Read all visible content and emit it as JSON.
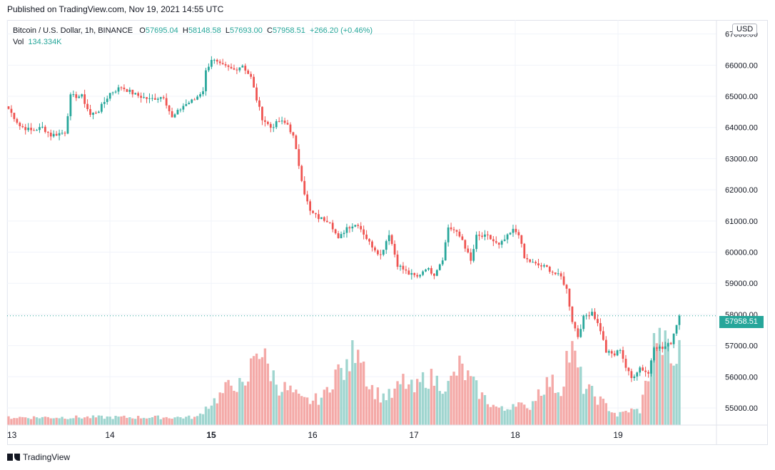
{
  "published": "Published on TradingView.com, Nov 19, 2021 14:55 UTC",
  "legend": {
    "symbol": "Bitcoin / U.S. Dollar, 1h, BINANCE",
    "o_label": "O",
    "o_value": "57695.04",
    "h_label": "H",
    "h_value": "58148.58",
    "l_label": "L",
    "l_value": "57693.00",
    "c_label": "C",
    "c_value": "57958.51",
    "change": "+266.20 (+0.46%)",
    "vol_label": "Vol",
    "vol_value": "134.334K"
  },
  "currency_badge": "USD",
  "last_price_label": "57958.51",
  "brand": "TradingView",
  "colors": {
    "up": "#26a69a",
    "down": "#ef5350",
    "vol_up": "#9fd5cf",
    "vol_down": "#f4a9a7",
    "grid": "#f0f3fa",
    "last_price_line": "#26a69a"
  },
  "chart_data": {
    "type": "candlestick",
    "title": "Bitcoin / U.S. Dollar, 1h, BINANCE",
    "interval": "1h",
    "y_axis": {
      "position": "right",
      "range": [
        54450,
        67450
      ],
      "ticks": [
        "67000.00",
        "66000.00",
        "65000.00",
        "64000.00",
        "63000.00",
        "62000.00",
        "61000.00",
        "60000.00",
        "59000.00",
        "58000.00",
        "57000.00",
        "56000.00",
        "55000.00"
      ]
    },
    "x_axis": {
      "ticks": [
        {
          "label": "13",
          "bold": false
        },
        {
          "label": "14",
          "bold": false
        },
        {
          "label": "15",
          "bold": true
        },
        {
          "label": "16",
          "bold": false
        },
        {
          "label": "17",
          "bold": false
        },
        {
          "label": "18",
          "bold": false
        },
        {
          "label": "19",
          "bold": false
        }
      ]
    },
    "grid": true,
    "last_price": 57958.51,
    "price_keypoints": [
      [
        0,
        64600
      ],
      [
        4,
        64050
      ],
      [
        8,
        63900
      ],
      [
        12,
        64000
      ],
      [
        15,
        63750
      ],
      [
        20,
        63850
      ],
      [
        22,
        65000
      ],
      [
        26,
        65000
      ],
      [
        29,
        64400
      ],
      [
        32,
        64550
      ],
      [
        36,
        65100
      ],
      [
        40,
        65300
      ],
      [
        45,
        65050
      ],
      [
        50,
        64900
      ],
      [
        55,
        65000
      ],
      [
        58,
        64300
      ],
      [
        62,
        64700
      ],
      [
        66,
        64900
      ],
      [
        69,
        65200
      ],
      [
        70,
        65800
      ],
      [
        72,
        66200
      ],
      [
        75,
        66000
      ],
      [
        80,
        65850
      ],
      [
        83,
        66000
      ],
      [
        86,
        65600
      ],
      [
        88,
        64900
      ],
      [
        90,
        64300
      ],
      [
        93,
        64000
      ],
      [
        96,
        64200
      ],
      [
        99,
        64100
      ],
      [
        101,
        63700
      ],
      [
        103,
        62800
      ],
      [
        105,
        61900
      ],
      [
        107,
        61300
      ],
      [
        110,
        61100
      ],
      [
        114,
        61000
      ],
      [
        117,
        60400
      ],
      [
        120,
        60800
      ],
      [
        124,
        60900
      ],
      [
        128,
        60300
      ],
      [
        132,
        59900
      ],
      [
        135,
        60600
      ],
      [
        138,
        59600
      ],
      [
        142,
        59300
      ],
      [
        145,
        59200
      ],
      [
        148,
        59500
      ],
      [
        151,
        59300
      ],
      [
        154,
        59800
      ],
      [
        156,
        60800
      ],
      [
        158,
        60700
      ],
      [
        161,
        60400
      ],
      [
        164,
        59700
      ],
      [
        166,
        60500
      ],
      [
        170,
        60500
      ],
      [
        174,
        60200
      ],
      [
        176,
        60400
      ],
      [
        179,
        60700
      ],
      [
        181,
        60600
      ],
      [
        183,
        59800
      ],
      [
        187,
        59600
      ],
      [
        191,
        59500
      ],
      [
        194,
        59300
      ],
      [
        196,
        59200
      ],
      [
        198,
        58800
      ],
      [
        200,
        57800
      ],
      [
        202,
        57300
      ],
      [
        204,
        57900
      ],
      [
        207,
        58100
      ],
      [
        210,
        57500
      ],
      [
        212,
        56800
      ],
      [
        215,
        56700
      ],
      [
        217,
        56900
      ],
      [
        219,
        56300
      ],
      [
        221,
        55950
      ],
      [
        224,
        56300
      ],
      [
        227,
        56100
      ],
      [
        229,
        57000
      ],
      [
        232,
        56900
      ],
      [
        235,
        57100
      ],
      [
        237,
        57700
      ],
      [
        238,
        57960
      ]
    ],
    "volume_keypoints": [
      [
        0,
        0.08
      ],
      [
        60,
        0.08
      ],
      [
        67,
        0.08
      ],
      [
        70,
        0.18
      ],
      [
        75,
        0.3
      ],
      [
        80,
        0.45
      ],
      [
        84,
        0.35
      ],
      [
        88,
        0.85
      ],
      [
        92,
        0.6
      ],
      [
        96,
        0.4
      ],
      [
        100,
        0.35
      ],
      [
        104,
        0.25
      ],
      [
        108,
        0.25
      ],
      [
        112,
        0.3
      ],
      [
        116,
        0.55
      ],
      [
        120,
        0.55
      ],
      [
        124,
        0.9
      ],
      [
        128,
        0.4
      ],
      [
        132,
        0.3
      ],
      [
        136,
        0.3
      ],
      [
        140,
        0.45
      ],
      [
        144,
        0.35
      ],
      [
        148,
        0.5
      ],
      [
        152,
        0.45
      ],
      [
        156,
        0.4
      ],
      [
        160,
        0.6
      ],
      [
        164,
        0.45
      ],
      [
        168,
        0.3
      ],
      [
        172,
        0.2
      ],
      [
        176,
        0.15
      ],
      [
        180,
        0.25
      ],
      [
        184,
        0.15
      ],
      [
        188,
        0.35
      ],
      [
        192,
        0.45
      ],
      [
        196,
        0.35
      ],
      [
        198,
        0.7
      ],
      [
        200,
        0.75
      ],
      [
        204,
        0.4
      ],
      [
        208,
        0.3
      ],
      [
        212,
        0.2
      ],
      [
        216,
        0.1
      ],
      [
        220,
        0.15
      ],
      [
        224,
        0.15
      ],
      [
        226,
        0.4
      ],
      [
        228,
        0.7
      ],
      [
        230,
        0.95
      ],
      [
        233,
        0.8
      ],
      [
        236,
        0.6
      ],
      [
        238,
        0.75
      ]
    ],
    "volume_max_height_fraction": 0.24
  }
}
